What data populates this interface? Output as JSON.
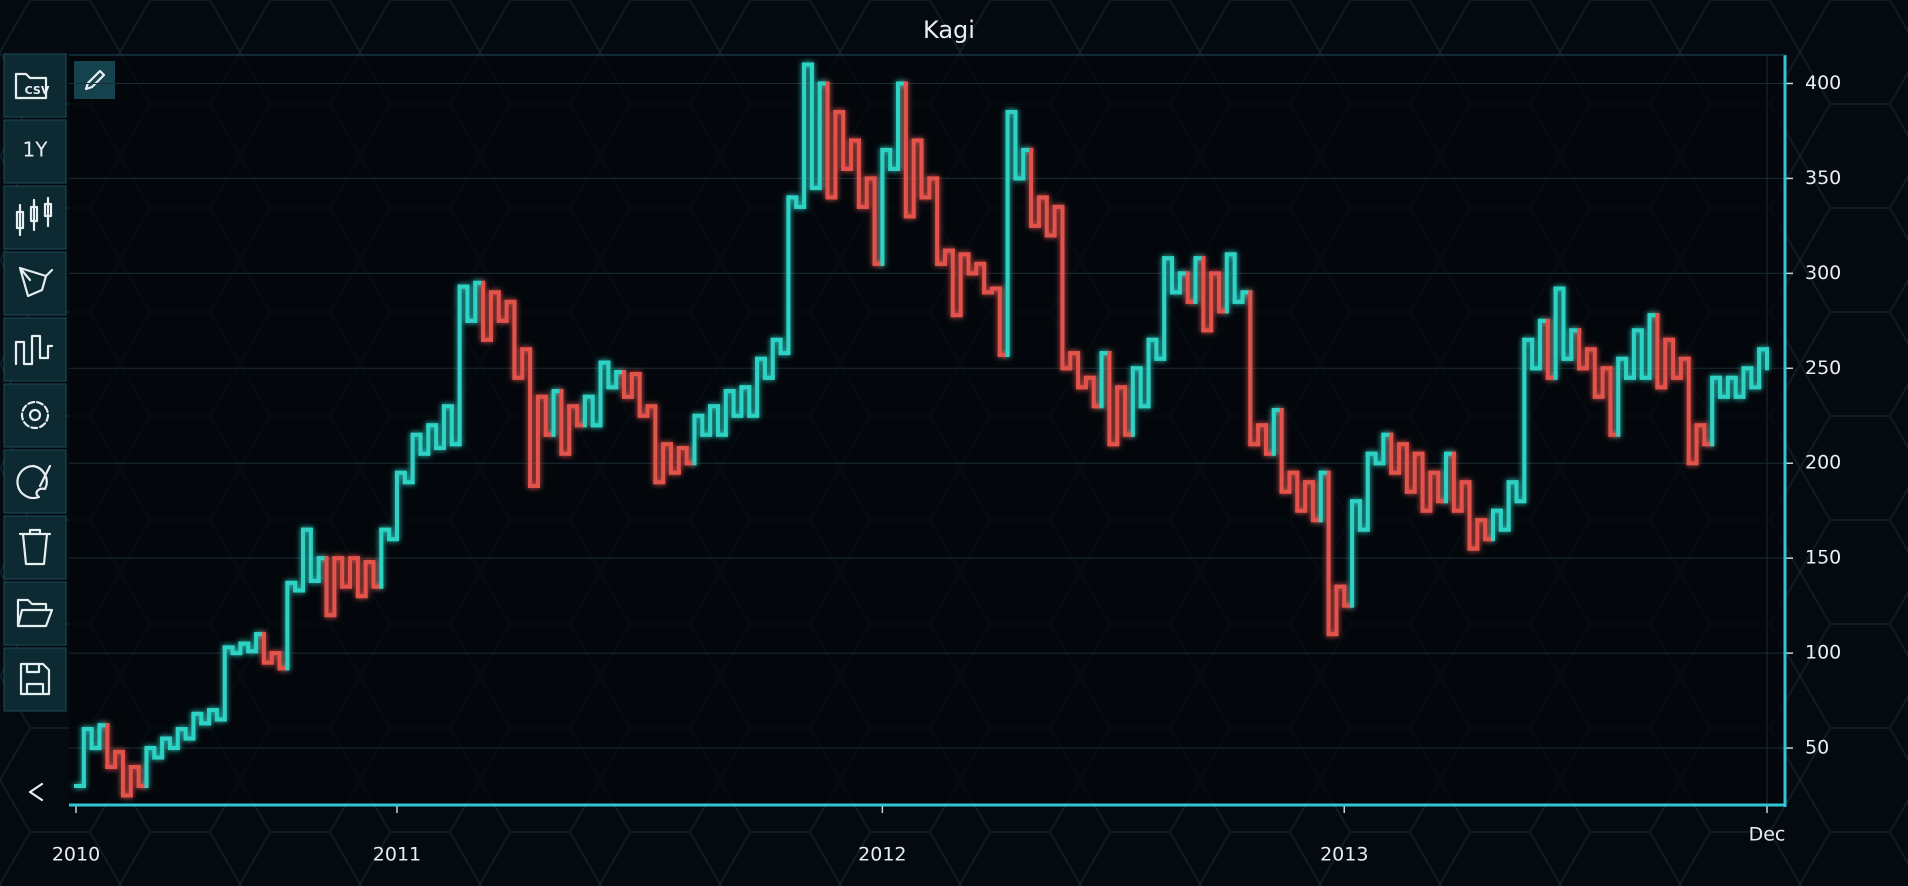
{
  "chart_data": {
    "type": "kagi",
    "title": "Kagi",
    "values": [
      30,
      60,
      50,
      62,
      40,
      48,
      25,
      40,
      30,
      50,
      45,
      55,
      50,
      60,
      55,
      68,
      63,
      70,
      65,
      103,
      100,
      105,
      101,
      110,
      95,
      100,
      92,
      137,
      133,
      165,
      138,
      150,
      120,
      150,
      135,
      150,
      130,
      148,
      135,
      165,
      160,
      195,
      190,
      215,
      205,
      220,
      208,
      230,
      210,
      293,
      275,
      295,
      265,
      290,
      275,
      285,
      245,
      260,
      188,
      235,
      215,
      238,
      205,
      230,
      220,
      235,
      220,
      253,
      240,
      248,
      235,
      247,
      225,
      230,
      190,
      210,
      195,
      208,
      200,
      225,
      215,
      230,
      215,
      238,
      225,
      240,
      225,
      255,
      245,
      265,
      258,
      340,
      335,
      410,
      345,
      400,
      340,
      385,
      355,
      370,
      335,
      350,
      305,
      365,
      355,
      400,
      330,
      370,
      340,
      350,
      305,
      312,
      278,
      310,
      300,
      305,
      290,
      292,
      257,
      385,
      350,
      365,
      325,
      340,
      320,
      335,
      250,
      258,
      240,
      245,
      230,
      258,
      210,
      240,
      215,
      250,
      230,
      265,
      255,
      308,
      290,
      300,
      285,
      308,
      270,
      300,
      280,
      310,
      285,
      290,
      210,
      220,
      205,
      228,
      185,
      195,
      175,
      190,
      170,
      195,
      110,
      135,
      125,
      180,
      165,
      205,
      200,
      215,
      195,
      210,
      185,
      205,
      175,
      195,
      180,
      205,
      175,
      190,
      155,
      170,
      160,
      175,
      165,
      190,
      180,
      265,
      250,
      275,
      245,
      292,
      255,
      270,
      250,
      260,
      235,
      250,
      215,
      255,
      245,
      270,
      245,
      278,
      240,
      265,
      245,
      255,
      200,
      220,
      210,
      245,
      235,
      245,
      235,
      250,
      240,
      260,
      250
    ],
    "up_color": "#2fd3c5",
    "down_color": "#e2534c",
    "xlim": [
      0,
      216
    ],
    "xticks": [
      {
        "value": 0,
        "label": "2010"
      },
      {
        "value": 41,
        "label": "2011"
      },
      {
        "value": 103,
        "label": "2012"
      },
      {
        "value": 162,
        "label": "2013"
      },
      {
        "value": 216,
        "label": "Dec"
      }
    ],
    "ylim": [
      20,
      415
    ],
    "yticks": [
      50,
      100,
      150,
      200,
      250,
      300,
      350,
      400
    ],
    "grid": true
  },
  "toolbar": {
    "csv": "CSV",
    "range": "1Y"
  }
}
